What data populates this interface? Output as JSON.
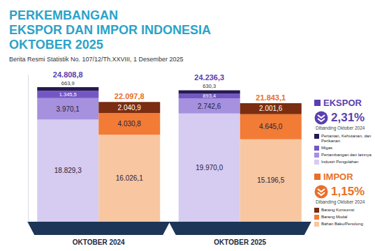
{
  "chart_data": {
    "type": "bar",
    "title": [
      "PERKEMBANGAN",
      "EKSPOR DAN IMPOR INDONESIA",
      "OKTOBER 2025"
    ],
    "subtitle": "Berita Resmi Statistik No. 107/12/Th.XXVIII, 1 Desember 2025",
    "categories": [
      "OKTOBER 2024",
      "OKTOBER 2025"
    ],
    "ylim": [
      0,
      27000
    ],
    "grid": false,
    "tick_labels": "x",
    "stacked": true,
    "data_labels": true,
    "groups": [
      {
        "name": "EKSPOR",
        "color": "#5a3fb0",
        "change": "2,31%",
        "note": "Dibanding Oktober 2024",
        "totals": [
          24808.8,
          24236.3
        ],
        "total_labels": [
          "24.808,8",
          "24.236,3"
        ],
        "series": [
          {
            "name": "Industri Pengolahan",
            "color": "#d6cbf1",
            "values": [
              18829.3,
              19970.0
            ],
            "value_labels": [
              "18.829,3",
              "19.970,0"
            ]
          },
          {
            "name": "Pertambangan dan lainnya",
            "color": "#a591dd",
            "values": [
              3970.1,
              2742.6
            ],
            "value_labels": [
              "3.970,1",
              "2.742,6"
            ]
          },
          {
            "name": "Migas",
            "color": "#7457c4",
            "values": [
              1345.5,
              893.4
            ],
            "value_labels": [
              "1.345,5",
              "893,4"
            ]
          },
          {
            "name": "Pertanian, Kehutanan, dan Perikanan",
            "color": "#261a52",
            "values": [
              663.9,
              630.3
            ],
            "value_labels": [
              "663,9",
              "630,3"
            ]
          }
        ]
      },
      {
        "name": "IMPOR",
        "color": "#e8702a",
        "change": "1,15%",
        "note": "Dibanding Oktober 2024",
        "totals": [
          22097.8,
          21843.1
        ],
        "total_labels": [
          "22.097,8",
          "21.843,1"
        ],
        "series": [
          {
            "name": "Bahan Baku/Penolong",
            "color": "#f8c6a0",
            "values": [
              16026.1,
              15196.5
            ],
            "value_labels": [
              "16.026,1",
              "15.196,5"
            ]
          },
          {
            "name": "Barang Modal",
            "color": "#f27b35",
            "values": [
              4030.8,
              4645.0
            ],
            "value_labels": [
              "4.030,8",
              "4.645,0"
            ]
          },
          {
            "name": "Barang Konsumsi",
            "color": "#7a2d10",
            "values": [
              2040.9,
              2001.6
            ],
            "value_labels": [
              "2.040,9",
              "2.001,6"
            ]
          }
        ]
      }
    ]
  }
}
